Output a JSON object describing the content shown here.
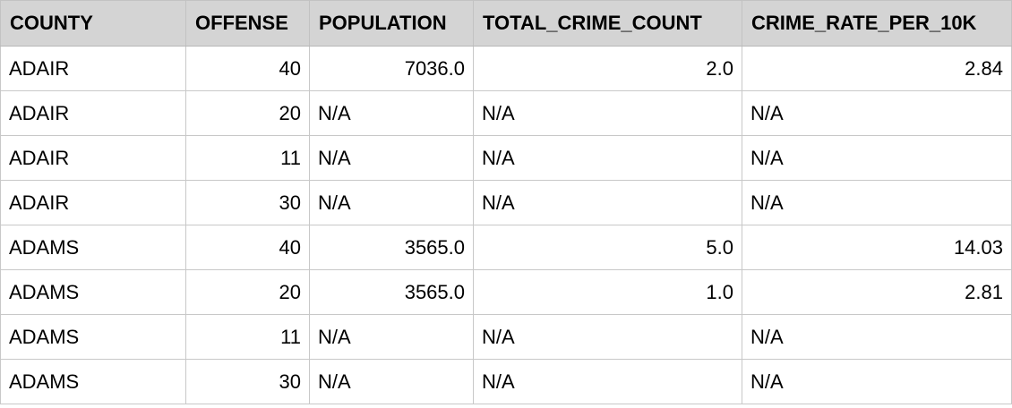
{
  "table": {
    "headers": [
      "COUNTY",
      "OFFENSE",
      "POPULATION",
      "TOTAL_CRIME_COUNT",
      "CRIME_RATE_PER_10K"
    ],
    "rows": [
      [
        "ADAIR",
        "40",
        "7036.0",
        "2.0",
        "2.84"
      ],
      [
        "ADAIR",
        "20",
        "N/A",
        "N/A",
        "N/A"
      ],
      [
        "ADAIR",
        "11",
        "N/A",
        "N/A",
        "N/A"
      ],
      [
        "ADAIR",
        "30",
        "N/A",
        "N/A",
        "N/A"
      ],
      [
        "ADAMS",
        "40",
        "3565.0",
        "5.0",
        "14.03"
      ],
      [
        "ADAMS",
        "20",
        "3565.0",
        "1.0",
        "2.81"
      ],
      [
        "ADAMS",
        "11",
        "N/A",
        "N/A",
        "N/A"
      ],
      [
        "ADAMS",
        "30",
        "N/A",
        "N/A",
        "N/A"
      ]
    ]
  }
}
